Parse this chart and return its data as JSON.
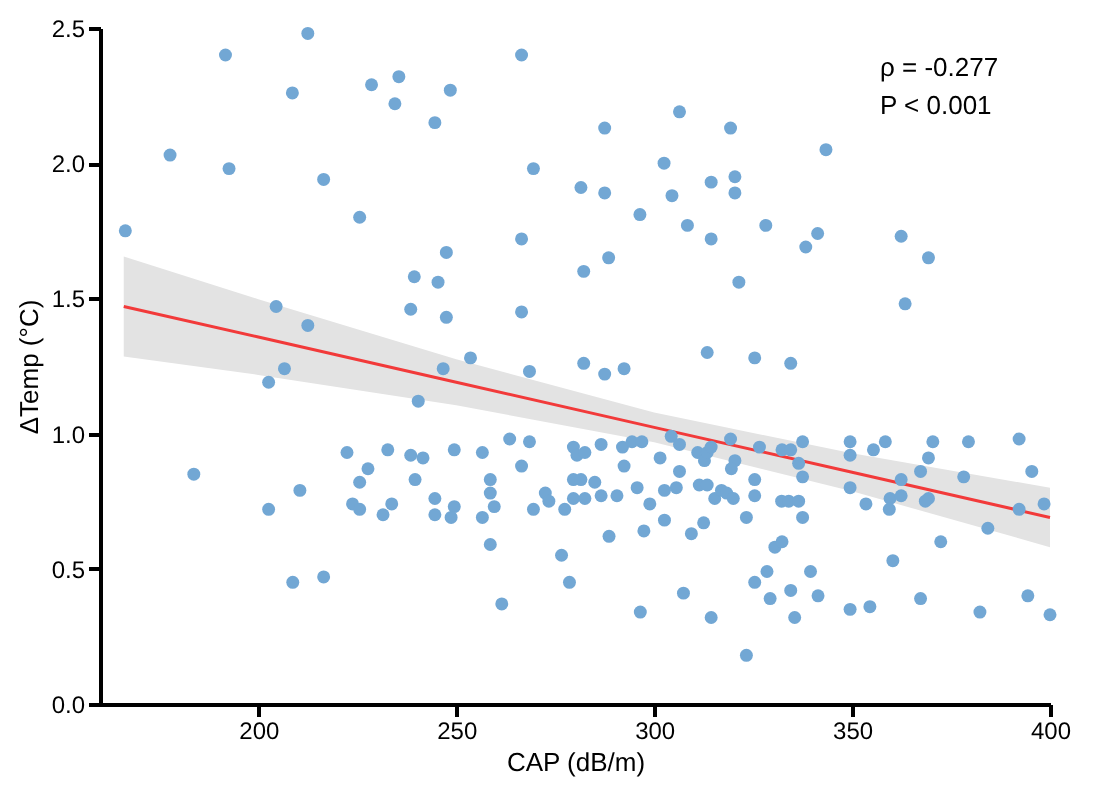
{
  "chart_data": {
    "type": "scatter",
    "xlabel": "CAP (dB/m)",
    "ylabel": "ΔTemp (°C)",
    "annotations": [
      "ρ = -0.277",
      "P < 0.001"
    ],
    "xlim": [
      160,
      400
    ],
    "xticks": [
      200,
      250,
      300,
      350,
      400
    ],
    "ylim": [
      0,
      2.5
    ],
    "yticks": [
      {
        "value": 0,
        "label": "0.0"
      },
      {
        "value": 0.5,
        "label": "0.5"
      },
      {
        "value": 1,
        "label": "1.0"
      },
      {
        "value": 1.5,
        "label": "1.5"
      },
      {
        "value": 2,
        "label": "2.0"
      },
      {
        "value": 2.5,
        "label": "2.5"
      }
    ],
    "grid": false,
    "series": [
      {
        "marker": "circle",
        "color": "#72a7d4",
        "x": [
          166.4,
          191.7,
          212.5,
          177.7,
          192.6,
          208.6,
          216.5,
          228.6,
          235.5,
          234.5,
          248.5,
          244.6,
          266.5,
          269.5,
          281.5,
          225.6,
          247.5,
          266.5,
          282.2,
          239.4,
          245.4,
          204.5,
          212.5,
          238.5,
          247.5,
          266.5,
          206.6,
          246.7,
          253.6,
          268.5,
          282.2,
          287.5,
          306.4,
          319.3,
          343.4,
          302.5,
          287.5,
          304.5,
          314.4,
          320.4,
          320.4,
          296.4,
          308.4,
          314.4,
          328.2,
          338.3,
          341.3,
          362.4,
          369.3,
          288.5,
          321.4,
          363.4,
          287.5,
          292.4,
          313.4,
          325.4,
          334.5,
          202.6,
          240.4,
          183.7,
          202.6,
          210.5,
          208.7,
          216.5,
          222.4,
          227.7,
          225.6,
          223.8,
          225.6,
          232.7,
          233.7,
          231.5,
          238.5,
          241.6,
          239.6,
          244.6,
          244.6,
          249.5,
          248.7,
          249.5,
          256.6,
          258.6,
          258.6,
          259.6,
          256.6,
          258.6,
          261.5,
          263.5,
          266.5,
          268.5,
          269.5,
          272.5,
          273.4,
          277.4,
          276.6,
          278.6,
          279.6,
          280.5,
          282.5,
          279.6,
          281.5,
          279.6,
          282.5,
          286.6,
          285,
          286.6,
          292,
          294.4,
          296.9,
          292.4,
          290.6,
          295.7,
          298.9,
          288.6,
          297.4,
          296.5,
          301.5,
          304.3,
          306.4,
          302.6,
          305.6,
          306.4,
          302.6,
          309.4,
          307.4,
          311,
          312.7,
          313.4,
          314.4,
          311.4,
          313.4,
          315.3,
          317,
          318.3,
          320,
          312.5,
          319.3,
          320.4,
          319.5,
          314.4,
          326.6,
          325.4,
          325.4,
          323.3,
          323.3,
          325.4,
          328.5,
          329.3,
          330.5,
          332.3,
          332.3,
          334.5,
          336.5,
          337.5,
          332.2,
          334,
          336.5,
          337.5,
          337.5,
          334.5,
          335.5,
          339.5,
          341.4,
          349.5,
          349.5,
          349.5,
          353.5,
          349.5,
          354.5,
          355.4,
          358.4,
          359.6,
          359.4,
          362.4,
          362.4,
          360.3,
          367.3,
          369.3,
          370.4,
          367.3,
          369.3,
          368.5,
          372.4,
          378.2,
          379.4,
          382.3,
          384.3,
          392.2,
          392.2,
          395.4,
          394.4,
          398.5,
          400
        ],
        "values": [
          1.75,
          2.4,
          2.48,
          2.03,
          1.98,
          2.26,
          1.94,
          2.29,
          2.32,
          2.22,
          2.27,
          2.15,
          2.4,
          1.98,
          1.91,
          1.8,
          1.67,
          1.72,
          1.6,
          1.58,
          1.56,
          1.47,
          1.4,
          1.46,
          1.43,
          1.45,
          1.24,
          1.24,
          1.28,
          1.23,
          1.26,
          2.13,
          2.19,
          2.13,
          2.05,
          2.0,
          1.89,
          1.88,
          1.93,
          1.95,
          1.89,
          1.81,
          1.77,
          1.72,
          1.77,
          1.69,
          1.74,
          1.73,
          1.65,
          1.65,
          1.56,
          1.48,
          1.22,
          1.24,
          1.3,
          1.28,
          1.26,
          1.19,
          1.12,
          0.85,
          0.72,
          0.79,
          0.45,
          0.47,
          0.93,
          0.87,
          0.82,
          0.74,
          0.72,
          0.94,
          0.74,
          0.7,
          0.92,
          0.91,
          0.83,
          0.76,
          0.7,
          0.73,
          0.69,
          0.94,
          0.93,
          0.83,
          0.78,
          0.73,
          0.69,
          0.59,
          0.37,
          0.98,
          0.88,
          0.97,
          0.72,
          0.78,
          0.75,
          0.72,
          0.55,
          0.45,
          0.95,
          0.92,
          0.93,
          0.83,
          0.83,
          0.76,
          0.76,
          0.96,
          0.82,
          0.77,
          0.95,
          0.97,
          0.97,
          0.88,
          0.77,
          0.8,
          0.74,
          0.62,
          0.64,
          0.34,
          0.91,
          0.99,
          0.96,
          0.79,
          0.8,
          0.86,
          0.68,
          0.63,
          0.41,
          0.93,
          0.9,
          0.93,
          0.95,
          0.81,
          0.81,
          0.76,
          0.79,
          0.78,
          0.76,
          0.67,
          0.98,
          0.9,
          0.87,
          0.32,
          0.95,
          0.83,
          0.77,
          0.69,
          0.18,
          0.45,
          0.49,
          0.39,
          0.58,
          0.6,
          0.94,
          0.94,
          0.89,
          0.84,
          0.75,
          0.75,
          0.75,
          0.69,
          0.97,
          0.42,
          0.32,
          0.49,
          0.4,
          0.97,
          0.92,
          0.8,
          0.74,
          0.35,
          0.36,
          0.94,
          0.97,
          0.76,
          0.72,
          0.83,
          0.77,
          0.53,
          0.39,
          0.91,
          0.97,
          0.86,
          0.76,
          0.75,
          0.6,
          0.84,
          0.97,
          0.34,
          0.65,
          0.98,
          0.72,
          0.86,
          0.4,
          0.74,
          0.33
        ]
      },
      {
        "type": "line",
        "marker": "none",
        "line_style": "solid",
        "color": "#f23a3a",
        "x": [
          166,
          200,
          250,
          300,
          350,
          400
        ],
        "values": [
          1.47,
          1.357,
          1.19,
          1.023,
          0.857,
          0.69
        ],
        "lower": [
          1.285,
          1.217,
          1.105,
          0.968,
          0.787,
          0.58
        ],
        "upper": [
          1.655,
          1.497,
          1.275,
          1.078,
          0.927,
          0.8
        ]
      }
    ]
  }
}
